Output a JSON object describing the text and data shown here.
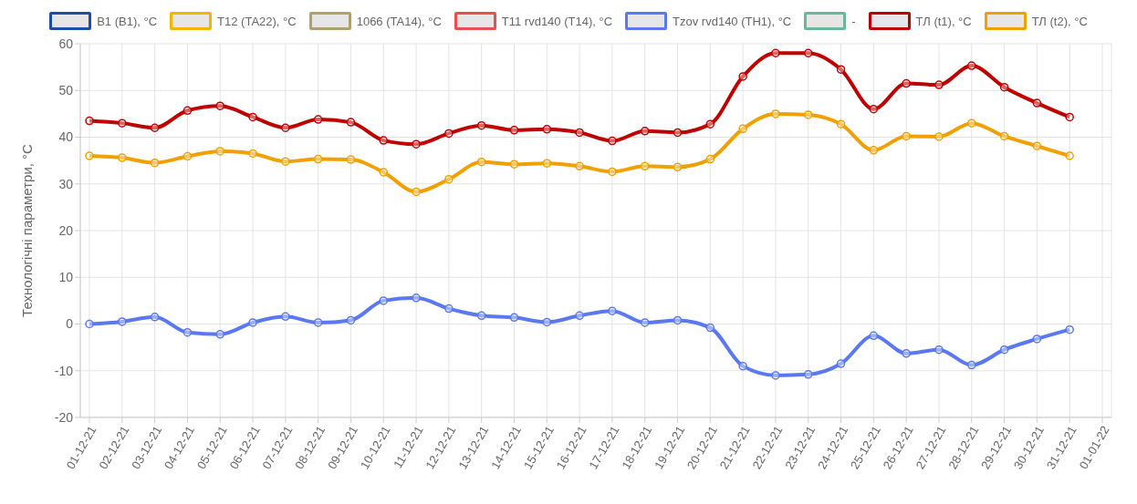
{
  "chart_data": {
    "type": "line",
    "ylabel": "Технологічні параметри, °C",
    "categories": [
      "01-12-21",
      "02-12-21",
      "03-12-21",
      "04-12-21",
      "05-12-21",
      "06-12-21",
      "07-12-21",
      "08-12-21",
      "09-12-21",
      "10-12-21",
      "11-12-21",
      "12-12-21",
      "13-12-21",
      "14-12-21",
      "15-12-21",
      "16-12-21",
      "17-12-21",
      "18-12-21",
      "19-12-21",
      "20-12-21",
      "21-12-21",
      "22-12-21",
      "23-12-21",
      "24-12-21",
      "25-12-21",
      "26-12-21",
      "27-12-21",
      "28-12-21",
      "29-12-21",
      "30-12-21",
      "31-12-21",
      "01-01-22"
    ],
    "series": [
      {
        "name": "B1 (B1), °C",
        "color": "#1a4fa8",
        "values": [
          null,
          null,
          null,
          null,
          null,
          null,
          null,
          null,
          null,
          null,
          null,
          null,
          null,
          null,
          null,
          null,
          null,
          null,
          null,
          null,
          null,
          null,
          null,
          null,
          null,
          null,
          null,
          null,
          null,
          null,
          null,
          null
        ]
      },
      {
        "name": "T12 (TA22), °C",
        "color": "#f5b400",
        "values": [
          null,
          null,
          null,
          null,
          null,
          null,
          null,
          null,
          null,
          null,
          null,
          null,
          null,
          null,
          null,
          null,
          null,
          null,
          null,
          null,
          null,
          null,
          null,
          null,
          null,
          null,
          null,
          null,
          null,
          null,
          null,
          null
        ]
      },
      {
        "name": "1066 (TA14), °C",
        "color": "#b0a070",
        "values": [
          null,
          null,
          null,
          null,
          null,
          null,
          null,
          null,
          null,
          null,
          null,
          null,
          null,
          null,
          null,
          null,
          null,
          null,
          null,
          null,
          null,
          null,
          null,
          null,
          null,
          null,
          null,
          null,
          null,
          null,
          null,
          null
        ]
      },
      {
        "name": "T11 rvd140 (T14), °C",
        "color": "#e85050",
        "values": [
          null,
          null,
          null,
          null,
          null,
          null,
          null,
          null,
          null,
          null,
          null,
          null,
          null,
          null,
          null,
          null,
          null,
          null,
          null,
          null,
          null,
          null,
          null,
          null,
          null,
          null,
          null,
          null,
          null,
          null,
          null,
          null
        ]
      },
      {
        "name": "Tzov rvd140 (TH1), °C",
        "color": "#5a78f0",
        "values": [
          0,
          0.5,
          1.5,
          -1.8,
          -2.2,
          0.3,
          1.6,
          0.3,
          0.8,
          5,
          5.6,
          3.3,
          1.8,
          1.4,
          0.4,
          1.8,
          2.8,
          0.3,
          0.8,
          -0.8,
          -9,
          -11,
          -10.8,
          -8.5,
          -2.5,
          -6.3,
          -5.5,
          -8.8,
          -5.5,
          -3.2,
          -1.2,
          null
        ]
      },
      {
        "name": "-",
        "color": "#6ab89a",
        "values": [
          null,
          null,
          null,
          null,
          null,
          null,
          null,
          null,
          null,
          null,
          null,
          null,
          null,
          null,
          null,
          null,
          null,
          null,
          null,
          null,
          null,
          null,
          null,
          null,
          null,
          null,
          null,
          null,
          null,
          null,
          null,
          null
        ]
      },
      {
        "name": "ТЛ (t1), °C",
        "color": "#c00000",
        "values": [
          43.5,
          43,
          42,
          45.7,
          46.7,
          44.3,
          42,
          43.8,
          43.2,
          39.3,
          38.5,
          40.8,
          42.5,
          41.5,
          41.7,
          41,
          39.2,
          41.3,
          41,
          42.8,
          53,
          58,
          58,
          54.5,
          46,
          51.5,
          51.2,
          55.3,
          50.7,
          47.3,
          44.3,
          null
        ]
      },
      {
        "name": "ТЛ (t2), °C",
        "color": "#f0a000",
        "values": [
          36,
          35.6,
          34.5,
          35.9,
          37,
          36.5,
          34.8,
          35.3,
          35.2,
          32.5,
          28.3,
          31,
          34.7,
          34.2,
          34.4,
          33.8,
          32.6,
          33.8,
          33.6,
          35.3,
          41.8,
          45,
          44.8,
          42.8,
          37.2,
          40.2,
          40.1,
          43,
          40.2,
          38.1,
          36,
          null
        ]
      }
    ],
    "ylim": [
      -20,
      60
    ],
    "yticks": [
      -20,
      -10,
      0,
      10,
      20,
      30,
      40,
      50,
      60
    ],
    "grid": true,
    "legend": "top",
    "marker": "circle",
    "line_style": "solid"
  }
}
